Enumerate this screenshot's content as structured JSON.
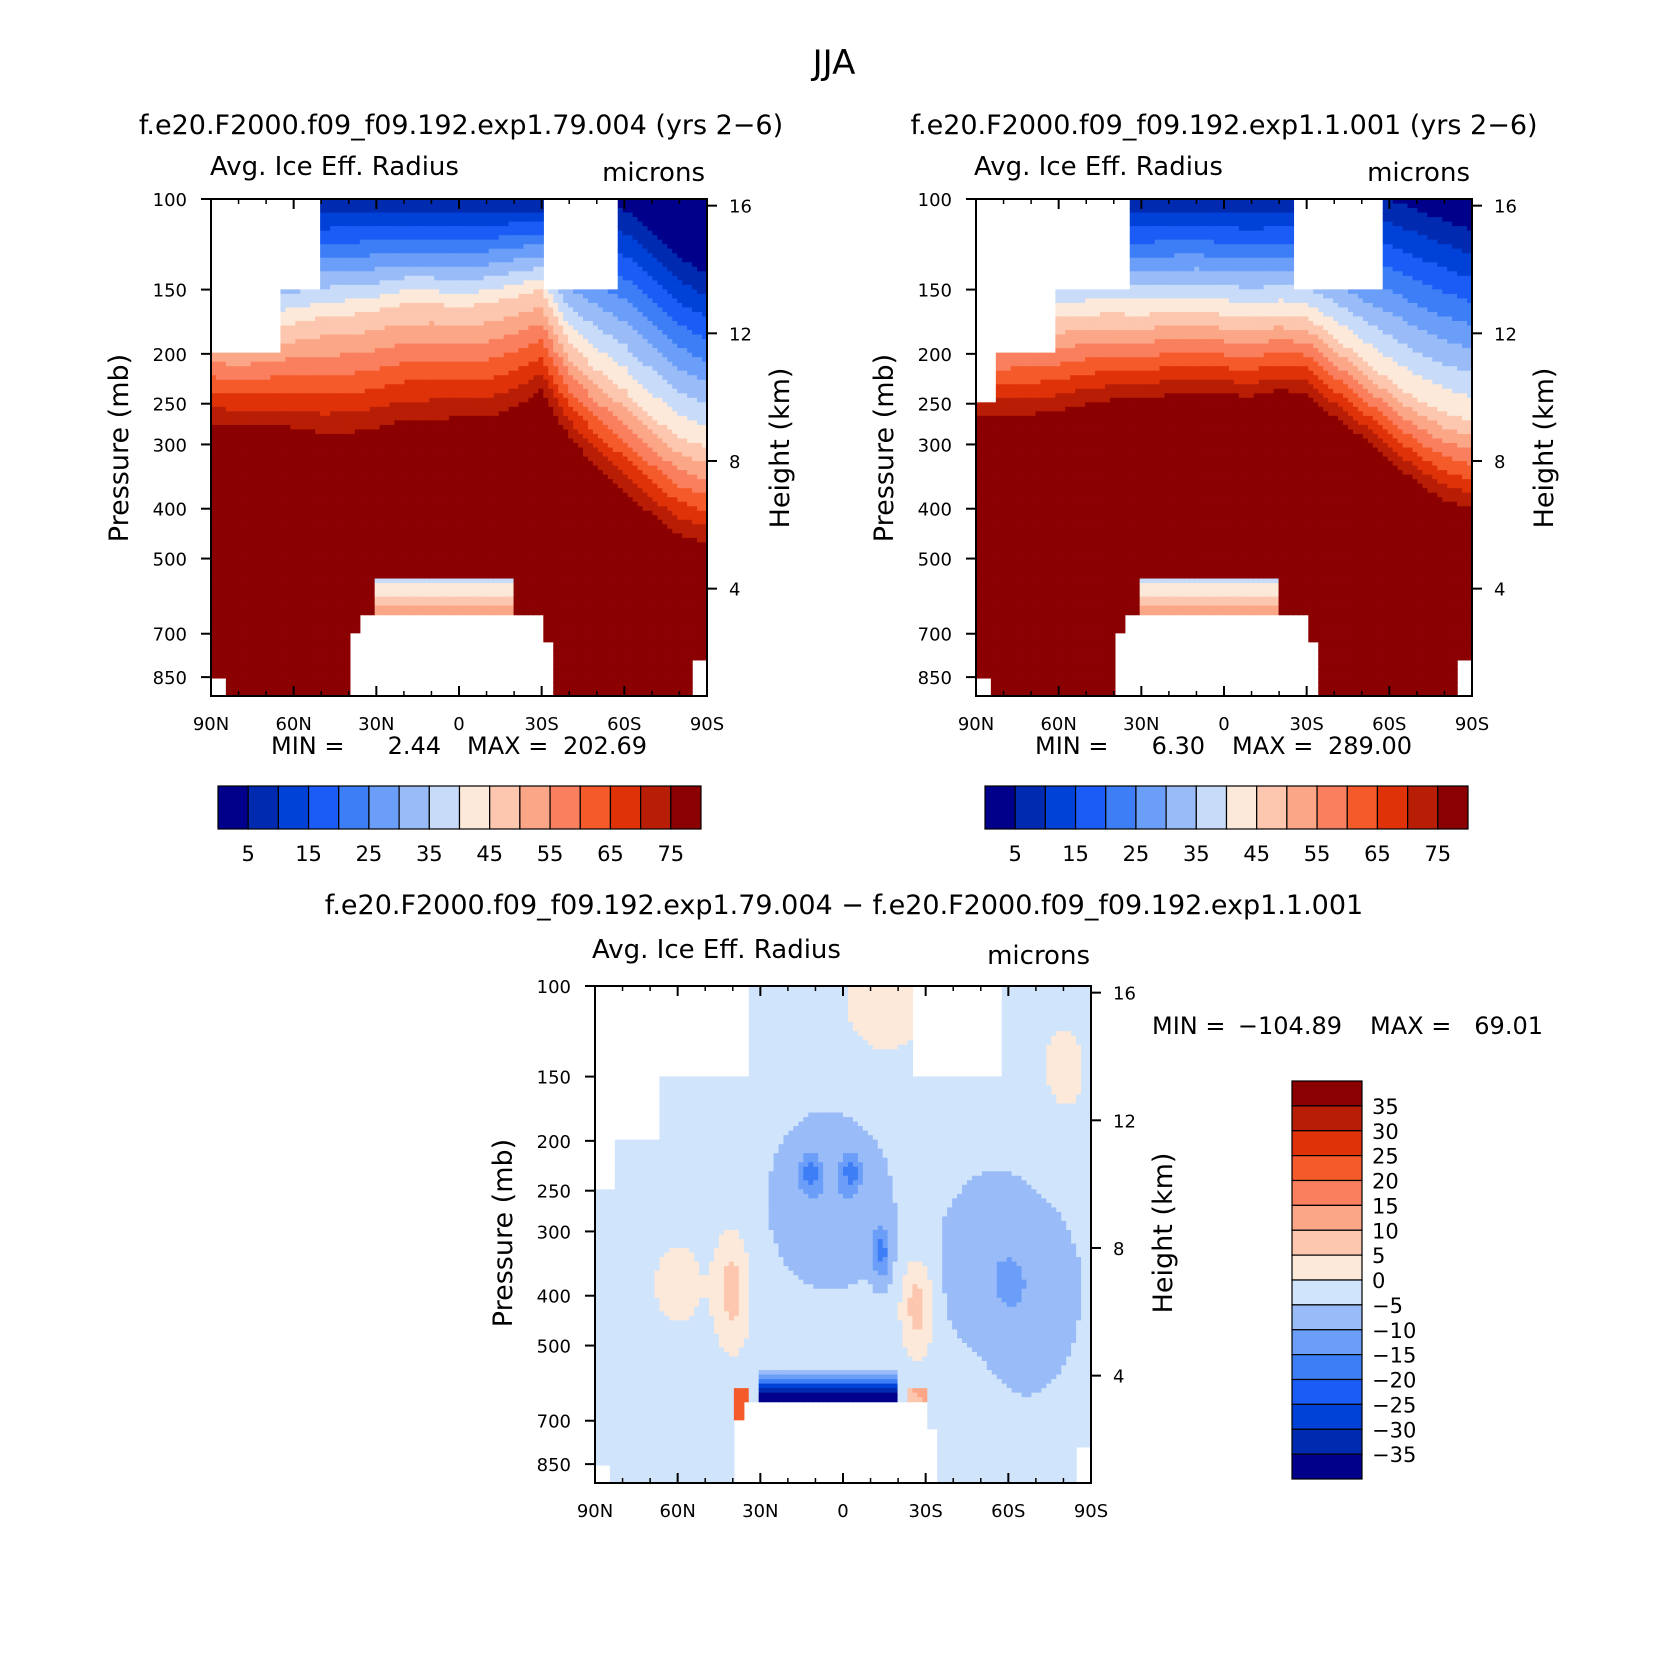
{
  "page": {
    "title": "JJA"
  },
  "chart_data": [
    {
      "id": "p1",
      "type": "heatmap",
      "case_title": "f.e20.F2000.f09_f09.192.exp1.79.004 (yrs 2−6)",
      "variable_label": "Avg. Ice Eff. Radius",
      "units_label": "microns",
      "ylabel_left": "Pressure (mb)",
      "ylabel_right": "Height (km)",
      "x_ticks": [
        "90N",
        "60N",
        "30N",
        "0",
        "30S",
        "60S",
        "90S"
      ],
      "x_range": [
        90,
        -90
      ],
      "y_ticks": [
        "100",
        "150",
        "200",
        "250",
        "300",
        "400",
        "500",
        "700",
        "850"
      ],
      "y_range_mb": [
        100,
        925
      ],
      "y_log_scale": true,
      "height_ticks": [
        "16",
        "12",
        "8",
        "4"
      ],
      "stats": {
        "min_label": "MIN =",
        "min_value": "2.44",
        "max_label": "MAX =",
        "max_value": "202.69"
      },
      "colorbar_labels": [
        "5",
        "15",
        "25",
        "35",
        "45",
        "55",
        "65",
        "75"
      ],
      "levels": [
        0,
        5,
        10,
        15,
        20,
        25,
        30,
        35,
        40,
        45,
        50,
        55,
        60,
        65,
        70,
        75
      ],
      "colors": [
        "#00008b",
        "#002bb0",
        "#0041d8",
        "#1a5cf5",
        "#3d7ef7",
        "#6b9ef8",
        "#99bcf8",
        "#c8dcfa",
        "#fde9d9",
        "#fcc7ae",
        "#fba787",
        "#f97f5e",
        "#f55a2a",
        "#df3208",
        "#b81d05",
        "#8b0000"
      ],
      "missing_color": "#ffffff",
      "profile": {
        "lat": [
          90,
          80,
          70,
          60,
          50,
          40,
          30,
          20,
          10,
          0,
          -10,
          -20,
          -30,
          -40,
          -50,
          -60,
          -70,
          -80,
          -90
        ],
        "z75_mb": [
          272,
          275,
          275,
          278,
          285,
          285,
          278,
          270,
          268,
          266,
          265,
          255,
          235,
          290,
          330,
          370,
          410,
          450,
          465
        ],
        "z45_mb": [
          180,
          185,
          180,
          175,
          170,
          168,
          165,
          160,
          160,
          162,
          160,
          155,
          150,
          190,
          215,
          235,
          265,
          290,
          305
        ],
        "z5_mb": [
          100,
          100,
          100,
          100,
          100,
          100,
          100,
          100,
          100,
          100,
          100,
          100,
          100,
          100,
          100,
          105,
          115,
          130,
          140
        ]
      }
    },
    {
      "id": "p2",
      "type": "heatmap",
      "case_title": "f.e20.F2000.f09_f09.192.exp1.1.001 (yrs 2−6)",
      "variable_label": "Avg. Ice Eff. Radius",
      "units_label": "microns",
      "ylabel_left": "Pressure (mb)",
      "ylabel_right": "Height (km)",
      "x_ticks": [
        "90N",
        "60N",
        "30N",
        "0",
        "30S",
        "60S",
        "90S"
      ],
      "x_range": [
        90,
        -90
      ],
      "y_ticks": [
        "100",
        "150",
        "200",
        "250",
        "300",
        "400",
        "500",
        "700",
        "850"
      ],
      "y_range_mb": [
        100,
        925
      ],
      "y_log_scale": true,
      "height_ticks": [
        "16",
        "12",
        "8",
        "4"
      ],
      "stats": {
        "min_label": "MIN =",
        "min_value": "6.30",
        "max_label": "MAX =",
        "max_value": "289.00"
      },
      "colorbar_labels": [
        "5",
        "15",
        "25",
        "35",
        "45",
        "55",
        "65",
        "75"
      ],
      "levels": [
        0,
        5,
        10,
        15,
        20,
        25,
        30,
        35,
        40,
        45,
        50,
        55,
        60,
        65,
        70,
        75
      ],
      "colors": [
        "#00008b",
        "#002bb0",
        "#0041d8",
        "#1a5cf5",
        "#3d7ef7",
        "#6b9ef8",
        "#99bcf8",
        "#c8dcfa",
        "#fde9d9",
        "#fcc7ae",
        "#fba787",
        "#f97f5e",
        "#f55a2a",
        "#df3208",
        "#b81d05",
        "#8b0000"
      ],
      "missing_color": "#ffffff",
      "profile": {
        "lat": [
          90,
          80,
          70,
          60,
          50,
          40,
          30,
          20,
          10,
          0,
          -10,
          -20,
          -30,
          -40,
          -50,
          -60,
          -70,
          -80,
          -90
        ],
        "z75_mb": [
          262,
          262,
          262,
          258,
          250,
          245,
          245,
          240,
          238,
          240,
          242,
          235,
          238,
          265,
          290,
          320,
          355,
          385,
          400
        ],
        "z45_mb": [
          175,
          175,
          172,
          170,
          168,
          167,
          168,
          166,
          165,
          168,
          170,
          168,
          170,
          185,
          205,
          225,
          245,
          260,
          270
        ],
        "z5_mb": [
          100,
          100,
          100,
          100,
          100,
          100,
          100,
          100,
          100,
          100,
          100,
          100,
          100,
          100,
          100,
          100,
          105,
          110,
          115
        ]
      }
    },
    {
      "id": "p3",
      "type": "heatmap",
      "case_title": "f.e20.F2000.f09_f09.192.exp1.79.004 − f.e20.F2000.f09_f09.192.exp1.1.001",
      "variable_label": "Avg. Ice Eff. Radius",
      "units_label": "microns",
      "ylabel_left": "Pressure (mb)",
      "ylabel_right": "Height (km)",
      "x_ticks": [
        "90N",
        "60N",
        "30N",
        "0",
        "30S",
        "60S",
        "90S"
      ],
      "x_range": [
        90,
        -90
      ],
      "y_ticks": [
        "100",
        "150",
        "200",
        "250",
        "300",
        "400",
        "500",
        "700",
        "850"
      ],
      "y_range_mb": [
        100,
        925
      ],
      "y_log_scale": true,
      "height_ticks": [
        "16",
        "12",
        "8",
        "4"
      ],
      "stats": {
        "min_label": "MIN =",
        "min_value": "−104.89",
        "max_label": "MAX =",
        "max_value": "69.01"
      },
      "colorbar_labels": [
        "35",
        "30",
        "25",
        "20",
        "15",
        "10",
        "5",
        "0",
        "−5",
        "−10",
        "−15",
        "−20",
        "−25",
        "−30",
        "−35"
      ],
      "levels": [
        -40,
        -35,
        -30,
        -25,
        -20,
        -15,
        -10,
        -5,
        0,
        5,
        10,
        15,
        20,
        25,
        30,
        35
      ],
      "colors": [
        "#00008b",
        "#002bb0",
        "#0041d8",
        "#1a5cf5",
        "#3d7ef7",
        "#6b9ef8",
        "#99bcf8",
        "#d0e4fb",
        "#fde9d9",
        "#fcc7ae",
        "#fba787",
        "#f97f5e",
        "#f55a2a",
        "#df3208",
        "#b81d05",
        "#8b0000"
      ],
      "missing_color": "#ffffff"
    }
  ]
}
